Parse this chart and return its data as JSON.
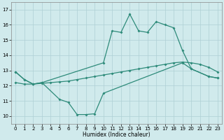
{
  "xlabel": "Humidex (Indice chaleur)",
  "line_color": "#2e8b7a",
  "bg_color": "#d0eaec",
  "grid_color": "#aecfd4",
  "ylim": [
    9.5,
    17.5
  ],
  "yticks": [
    10,
    11,
    12,
    13,
    14,
    15,
    16,
    17
  ],
  "xlim": [
    -0.5,
    23.5
  ],
  "xticks": [
    0,
    1,
    2,
    3,
    4,
    5,
    6,
    7,
    8,
    9,
    10,
    11,
    12,
    13,
    14,
    15,
    16,
    17,
    18,
    19,
    20,
    21,
    22,
    23
  ],
  "curve_bottom_x": [
    0,
    1,
    2,
    3,
    5,
    6,
    7,
    8,
    9,
    10,
    19,
    20,
    22,
    23
  ],
  "curve_bottom_y": [
    12.9,
    12.4,
    12.1,
    12.2,
    11.1,
    10.9,
    10.1,
    10.1,
    10.15,
    11.5,
    13.5,
    13.1,
    12.6,
    12.5
  ],
  "curve_top_x": [
    0,
    1,
    2,
    3,
    10,
    11,
    12,
    13,
    14,
    15,
    16,
    17,
    18,
    19,
    20,
    22,
    23
  ],
  "curve_top_y": [
    12.9,
    12.4,
    12.1,
    12.2,
    13.5,
    15.6,
    15.5,
    16.7,
    15.6,
    15.5,
    16.2,
    16.0,
    15.8,
    14.3,
    13.1,
    12.6,
    12.5
  ],
  "curve_mid_x": [
    0,
    1,
    2,
    3,
    4,
    5,
    6,
    7,
    8,
    9,
    10,
    11,
    12,
    13,
    14,
    15,
    16,
    17,
    18,
    19,
    20,
    21,
    22,
    23
  ],
  "curve_mid_y": [
    12.2,
    12.1,
    12.1,
    12.15,
    12.2,
    12.25,
    12.3,
    12.4,
    12.5,
    12.6,
    12.7,
    12.8,
    12.9,
    13.0,
    13.1,
    13.2,
    13.3,
    13.4,
    13.5,
    13.55,
    13.5,
    13.4,
    13.2,
    12.9
  ],
  "marker": "D",
  "markersize": 2.0,
  "linewidth": 0.9
}
